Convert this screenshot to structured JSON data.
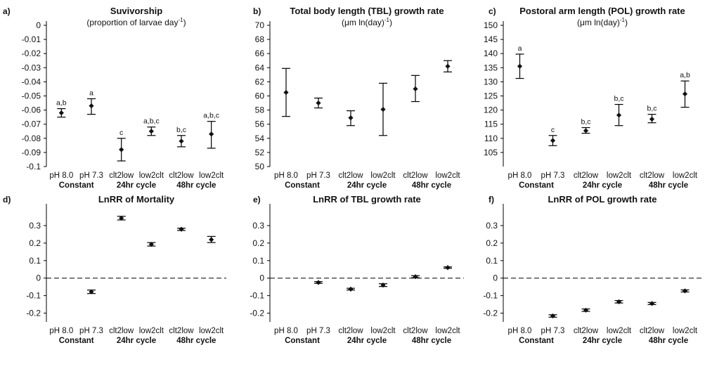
{
  "chart_data": [
    {
      "panel": "a)",
      "type": "scatter",
      "title": "Suvivorship",
      "subtitle": "(proportion of larvae day-1)",
      "categories": [
        "pH 8.0",
        "pH 7.3",
        "clt2low",
        "low2clt",
        "clt2low",
        "low2clt"
      ],
      "groups": [
        {
          "label": "Constant",
          "span": [
            0,
            1
          ]
        },
        {
          "label": "24hr cycle",
          "span": [
            2,
            3
          ]
        },
        {
          "label": "48hr cycle",
          "span": [
            4,
            5
          ]
        }
      ],
      "ylim": [
        -0.1,
        0
      ],
      "yticks": [
        0,
        -0.01,
        -0.02,
        -0.03,
        -0.04,
        -0.05,
        -0.06,
        -0.07,
        -0.08,
        -0.09,
        -0.1
      ],
      "ytick_labels": [
        "0",
        "-0.01",
        "-0.02",
        "-0.03",
        "-0.04",
        "-0.05",
        "-0.06",
        "-0.07",
        "-0.08",
        "-0.09",
        "-0.1"
      ],
      "values": [
        -0.062,
        -0.057,
        -0.088,
        -0.075,
        -0.082,
        -0.077
      ],
      "err_low": [
        -0.065,
        -0.063,
        -0.096,
        -0.078,
        -0.086,
        -0.087
      ],
      "err_high": [
        -0.059,
        -0.052,
        -0.08,
        -0.072,
        -0.078,
        -0.068
      ],
      "annotations": [
        "a,b",
        "a",
        "c",
        "a,b,c",
        "b,c",
        "a,b,c"
      ]
    },
    {
      "panel": "b)",
      "type": "scatter",
      "title": "Total body length (TBL) growth rate",
      "subtitle": "(μm ln(day)-1)",
      "categories": [
        "pH 8.0",
        "pH 7.3",
        "clt2low",
        "low2clt",
        "clt2low",
        "low2clt"
      ],
      "groups": [
        {
          "label": "Constant",
          "span": [
            0,
            1
          ]
        },
        {
          "label": "24hr cycle",
          "span": [
            2,
            3
          ]
        },
        {
          "label": "48hr cycle",
          "span": [
            4,
            5
          ]
        }
      ],
      "ylim": [
        50,
        70
      ],
      "yticks": [
        50,
        52,
        54,
        56,
        58,
        60,
        62,
        64,
        66,
        68,
        70
      ],
      "ytick_labels": [
        "50",
        "52",
        "54",
        "56",
        "58",
        "60",
        "62",
        "64",
        "66",
        "68",
        "70"
      ],
      "values": [
        60.5,
        59.0,
        56.9,
        58.1,
        61.0,
        64.2
      ],
      "err_low": [
        57.1,
        58.3,
        55.8,
        54.4,
        59.2,
        63.4
      ],
      "err_high": [
        63.9,
        59.7,
        57.9,
        61.8,
        62.9,
        65.0
      ],
      "annotations": [
        "",
        "",
        "",
        "",
        "",
        ""
      ]
    },
    {
      "panel": "c)",
      "type": "scatter",
      "title": "Postoral arm length (POL) growth rate",
      "subtitle": "(μm ln(day)-1)",
      "categories": [
        "pH 8.0",
        "pH 7.3",
        "clt2low",
        "low2clt",
        "clt2low",
        "low2clt"
      ],
      "groups": [
        {
          "label": "Constant",
          "span": [
            0,
            1
          ]
        },
        {
          "label": "24hr cycle",
          "span": [
            2,
            3
          ]
        },
        {
          "label": "48hr cycle",
          "span": [
            4,
            5
          ]
        }
      ],
      "ylim": [
        100,
        150
      ],
      "yticks": [
        105,
        110,
        115,
        120,
        125,
        130,
        135,
        140,
        145,
        150
      ],
      "ytick_labels": [
        "105",
        "110",
        "115",
        "120",
        "125",
        "130",
        "135",
        "140",
        "145",
        "150"
      ],
      "values": [
        135.5,
        109.2,
        112.7,
        118.2,
        116.8,
        125.7
      ],
      "err_low": [
        131.2,
        107.4,
        111.8,
        114.5,
        115.5,
        121.0
      ],
      "err_high": [
        139.8,
        111.0,
        113.8,
        122.0,
        118.5,
        130.3
      ],
      "annotations": [
        "a",
        "c",
        "b,c",
        "b,c",
        "b,c",
        "a,b"
      ]
    },
    {
      "panel": "d)",
      "type": "scatter",
      "title": "LnRR of Mortality",
      "categories": [
        "pH 8.0",
        "pH 7.3",
        "clt2low",
        "low2clt",
        "clt2low",
        "low2clt"
      ],
      "groups": [
        {
          "label": "Constant",
          "span": [
            0,
            1
          ]
        },
        {
          "label": "24hr cycle",
          "span": [
            2,
            3
          ]
        },
        {
          "label": "48hr cycle",
          "span": [
            4,
            5
          ]
        }
      ],
      "ylim": [
        -0.25,
        0.4
      ],
      "yticks": [
        0.3,
        0.2,
        0.1,
        0,
        -0.1,
        -0.2
      ],
      "ytick_labels": [
        "0.3",
        "0.2",
        "0.1",
        "0",
        "-0.1",
        "-0.2"
      ],
      "reference_line": 0,
      "values": [
        null,
        -0.078,
        0.342,
        0.193,
        0.279,
        0.22
      ],
      "err_low": [
        null,
        -0.088,
        0.332,
        0.183,
        0.272,
        0.203
      ],
      "err_high": [
        null,
        -0.068,
        0.353,
        0.203,
        0.285,
        0.238
      ],
      "annotations": [
        "",
        "",
        "",
        "",
        "",
        ""
      ]
    },
    {
      "panel": "e)",
      "type": "scatter",
      "title": "LnRR of TBL growth rate",
      "categories": [
        "pH 8.0",
        "pH 7.3",
        "clt2low",
        "low2clt",
        "clt2low",
        "low2clt"
      ],
      "groups": [
        {
          "label": "Constant",
          "span": [
            0,
            1
          ]
        },
        {
          "label": "24hr cycle",
          "span": [
            2,
            3
          ]
        },
        {
          "label": "48hr cycle",
          "span": [
            4,
            5
          ]
        }
      ],
      "ylim": [
        -0.25,
        0.4
      ],
      "yticks": [
        0.3,
        0.2,
        0.1,
        0,
        -0.1,
        -0.2
      ],
      "ytick_labels": [
        "0.3",
        "0.2",
        "0.1",
        "0",
        "-0.1",
        "-0.2"
      ],
      "reference_line": 0,
      "values": [
        null,
        -0.025,
        -0.063,
        -0.04,
        0.008,
        0.06
      ],
      "err_low": [
        null,
        -0.03,
        -0.068,
        -0.048,
        0.002,
        0.056
      ],
      "err_high": [
        null,
        -0.02,
        -0.058,
        -0.032,
        0.014,
        0.064
      ],
      "annotations": [
        "",
        "",
        "",
        "",
        "",
        ""
      ]
    },
    {
      "panel": "f)",
      "type": "scatter",
      "title": "LnRR of POL growth rate",
      "categories": [
        "pH 8.0",
        "pH 7.3",
        "clt2low",
        "low2clt",
        "clt2low",
        "low2clt"
      ],
      "groups": [
        {
          "label": "Constant",
          "span": [
            0,
            1
          ]
        },
        {
          "label": "24hr cycle",
          "span": [
            2,
            3
          ]
        },
        {
          "label": "48hr cycle",
          "span": [
            4,
            5
          ]
        }
      ],
      "ylim": [
        -0.25,
        0.4
      ],
      "yticks": [
        0.3,
        0.2,
        0.1,
        0,
        -0.1,
        -0.2
      ],
      "ytick_labels": [
        "0.3",
        "0.2",
        "0.1",
        "0",
        "-0.1",
        "-0.2"
      ],
      "reference_line": 0,
      "values": [
        null,
        -0.216,
        -0.183,
        -0.135,
        -0.145,
        -0.073
      ],
      "err_low": [
        null,
        -0.223,
        -0.19,
        -0.142,
        -0.151,
        -0.079
      ],
      "err_high": [
        null,
        -0.209,
        -0.176,
        -0.128,
        -0.139,
        -0.067
      ],
      "annotations": [
        "",
        "",
        "",
        "",
        "",
        ""
      ]
    }
  ]
}
